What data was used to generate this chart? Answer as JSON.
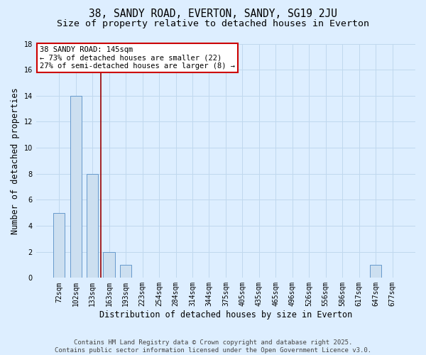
{
  "title": "38, SANDY ROAD, EVERTON, SANDY, SG19 2JU",
  "subtitle": "Size of property relative to detached houses in Everton",
  "xlabel": "Distribution of detached houses by size in Everton",
  "ylabel": "Number of detached properties",
  "categories": [
    "72sqm",
    "102sqm",
    "133sqm",
    "163sqm",
    "193sqm",
    "223sqm",
    "254sqm",
    "284sqm",
    "314sqm",
    "344sqm",
    "375sqm",
    "405sqm",
    "435sqm",
    "465sqm",
    "496sqm",
    "526sqm",
    "556sqm",
    "586sqm",
    "617sqm",
    "647sqm",
    "677sqm"
  ],
  "values": [
    5,
    14,
    8,
    2,
    1,
    0,
    0,
    0,
    0,
    0,
    0,
    0,
    0,
    0,
    0,
    0,
    0,
    0,
    0,
    1,
    0
  ],
  "bar_color": "#ccdff0",
  "bar_edge_color": "#6699cc",
  "background_color": "#ddeeff",
  "plot_bg_color": "#ddeeff",
  "grid_color": "#c8ddf0",
  "red_line_x": 2.5,
  "annotation_text": "38 SANDY ROAD: 145sqm\n← 73% of detached houses are smaller (22)\n27% of semi-detached houses are larger (8) →",
  "annotation_box_color": "#ffffff",
  "annotation_box_edge": "#cc0000",
  "annotation_text_color": "#000000",
  "red_line_color": "#990000",
  "ylim": [
    0,
    18
  ],
  "yticks": [
    0,
    2,
    4,
    6,
    8,
    10,
    12,
    14,
    16,
    18
  ],
  "footer": "Contains HM Land Registry data © Crown copyright and database right 2025.\nContains public sector information licensed under the Open Government Licence v3.0.",
  "title_fontsize": 10.5,
  "subtitle_fontsize": 9.5,
  "ylabel_fontsize": 8.5,
  "xlabel_fontsize": 8.5,
  "tick_fontsize": 7,
  "footer_fontsize": 6.5
}
